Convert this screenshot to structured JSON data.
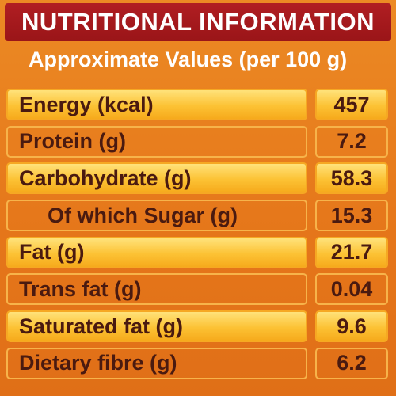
{
  "header": {
    "title": "NUTRITIONAL INFORMATION",
    "subtitle": "Approximate Values (per 100 g)"
  },
  "rows": [
    {
      "label": "Energy (kcal)",
      "value": "457"
    },
    {
      "label": "Protein (g)",
      "value": "7.2"
    },
    {
      "label": "Carbohydrate (g)",
      "value": "58.3"
    },
    {
      "label": "Of which Sugar (g)",
      "value": "15.3"
    },
    {
      "label": "Fat (g)",
      "value": "21.7"
    },
    {
      "label": "Trans fat (g)",
      "value": "0.04"
    },
    {
      "label": "Saturated fat (g)",
      "value": "9.6"
    },
    {
      "label": "Dietary  fibre (g)",
      "value": "6.2"
    }
  ],
  "colors": {
    "title_bar": "#a81a1e",
    "background": "#e87a1c",
    "row_highlight": "#fcc234",
    "text_dark": "#4a1a10"
  }
}
